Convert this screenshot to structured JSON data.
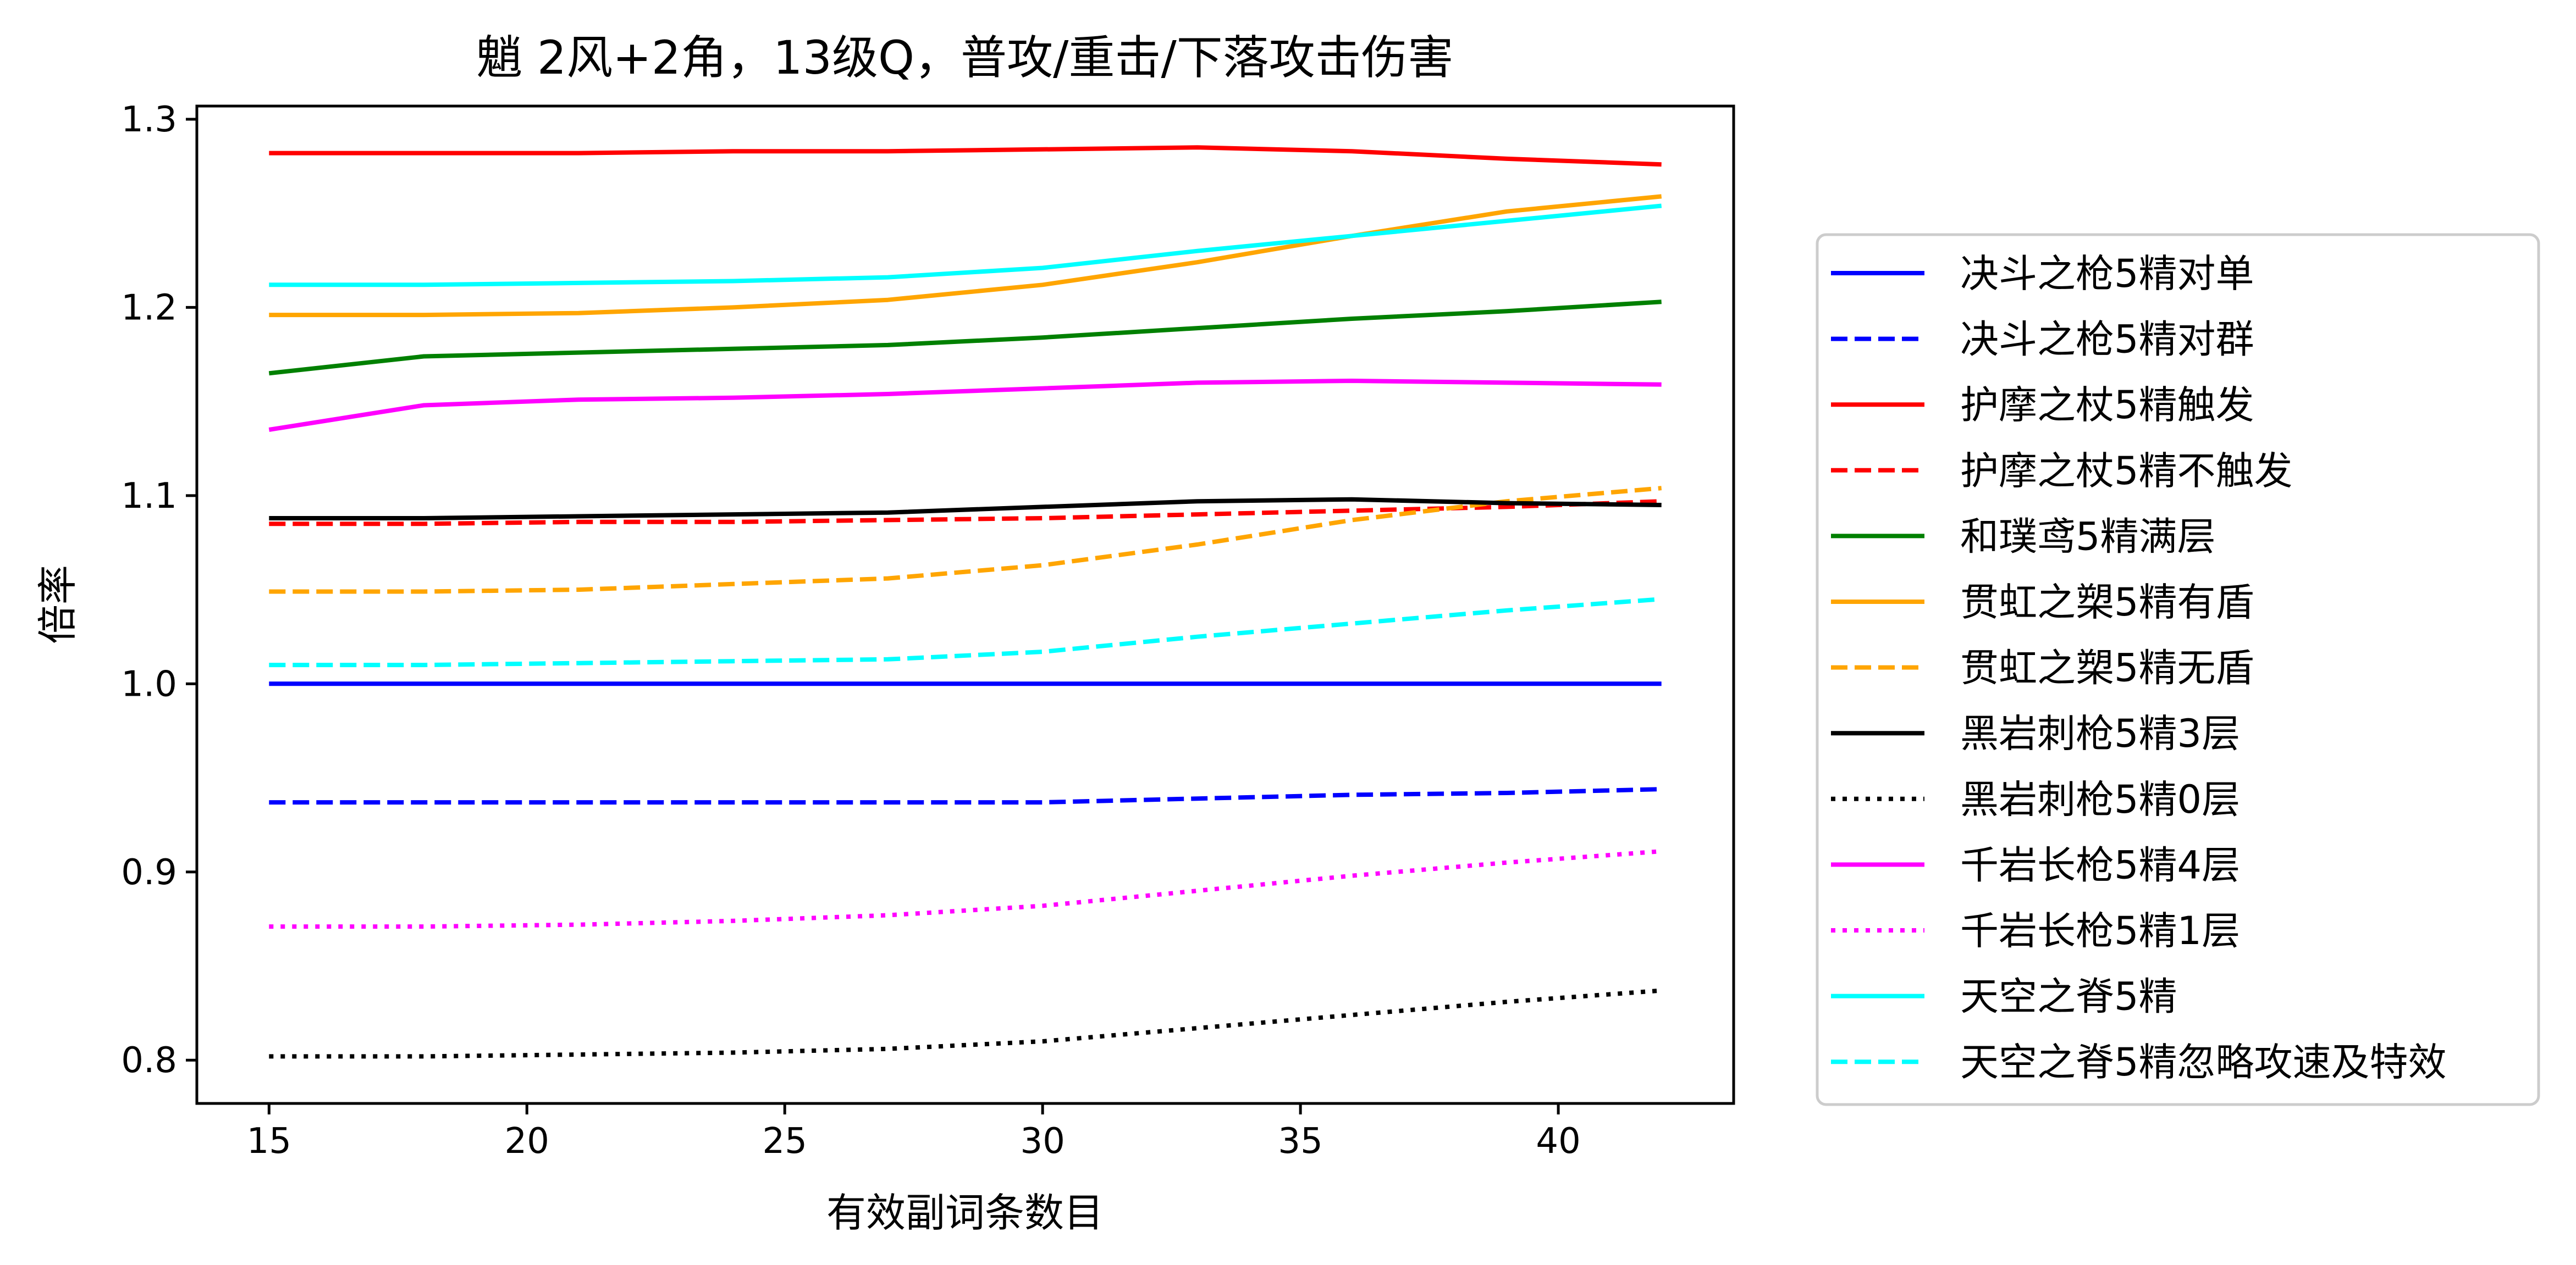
{
  "chart_data": {
    "type": "line",
    "title": "魈 2风+2角，13级Q，普攻/重击/下落攻击伤害",
    "xlabel": "有效副词条数目",
    "ylabel": "倍率",
    "xlim": [
      13.6,
      43.4
    ],
    "ylim": [
      0.777,
      1.307
    ],
    "xticks": [
      15,
      20,
      25,
      30,
      35,
      40
    ],
    "yticks": [
      0.8,
      0.9,
      1.0,
      1.1,
      1.2,
      1.3
    ],
    "xtick_labels": [
      "15",
      "20",
      "25",
      "30",
      "35",
      "40"
    ],
    "ytick_labels": [
      "0.8",
      "0.9",
      "1.0",
      "1.1",
      "1.2",
      "1.3"
    ],
    "grid": false,
    "legend_position": "outside-right",
    "x": [
      15,
      18,
      21,
      24,
      27,
      30,
      33,
      36,
      39,
      42
    ],
    "series": [
      {
        "name": "决斗之枪5精对单",
        "color": "#0000ff",
        "style": "solid",
        "values": [
          1.0,
          1.0,
          1.0,
          1.0,
          1.0,
          1.0,
          1.0,
          1.0,
          1.0,
          1.0
        ]
      },
      {
        "name": "决斗之枪5精对群",
        "color": "#0000ff",
        "style": "dashed",
        "values": [
          0.937,
          0.937,
          0.937,
          0.937,
          0.937,
          0.937,
          0.939,
          0.941,
          0.942,
          0.944
        ]
      },
      {
        "name": "护摩之杖5精触发",
        "color": "#ff0000",
        "style": "solid",
        "values": [
          1.282,
          1.282,
          1.282,
          1.283,
          1.283,
          1.284,
          1.285,
          1.283,
          1.279,
          1.276
        ]
      },
      {
        "name": "护摩之杖5精不触发",
        "color": "#ff0000",
        "style": "dashed",
        "values": [
          1.085,
          1.085,
          1.086,
          1.086,
          1.087,
          1.088,
          1.09,
          1.092,
          1.094,
          1.097
        ]
      },
      {
        "name": "和璞鸢5精满层",
        "color": "#008000",
        "style": "solid",
        "values": [
          1.165,
          1.174,
          1.176,
          1.178,
          1.18,
          1.184,
          1.189,
          1.194,
          1.198,
          1.203
        ]
      },
      {
        "name": "贯虹之槊5精有盾",
        "color": "#ffa500",
        "style": "solid",
        "values": [
          1.196,
          1.196,
          1.197,
          1.2,
          1.204,
          1.212,
          1.224,
          1.238,
          1.251,
          1.259
        ]
      },
      {
        "name": "贯虹之槊5精无盾",
        "color": "#ffa500",
        "style": "dashed",
        "values": [
          1.049,
          1.049,
          1.05,
          1.053,
          1.056,
          1.063,
          1.074,
          1.087,
          1.097,
          1.104
        ]
      },
      {
        "name": "黑岩刺枪5精3层",
        "color": "#000000",
        "style": "solid",
        "values": [
          1.088,
          1.088,
          1.089,
          1.09,
          1.091,
          1.094,
          1.097,
          1.098,
          1.096,
          1.095
        ]
      },
      {
        "name": "黑岩刺枪5精0层",
        "color": "#000000",
        "style": "dotted",
        "values": [
          0.802,
          0.802,
          0.803,
          0.804,
          0.806,
          0.81,
          0.817,
          0.824,
          0.831,
          0.837
        ]
      },
      {
        "name": "千岩长枪5精4层",
        "color": "#ff00ff",
        "style": "solid",
        "values": [
          1.135,
          1.148,
          1.151,
          1.152,
          1.154,
          1.157,
          1.16,
          1.161,
          1.16,
          1.159
        ]
      },
      {
        "name": "千岩长枪5精1层",
        "color": "#ff00ff",
        "style": "dotted",
        "values": [
          0.871,
          0.871,
          0.872,
          0.874,
          0.877,
          0.882,
          0.89,
          0.898,
          0.905,
          0.911
        ]
      },
      {
        "name": "天空之脊5精",
        "color": "#00ffff",
        "style": "solid",
        "values": [
          1.212,
          1.212,
          1.213,
          1.214,
          1.216,
          1.221,
          1.23,
          1.238,
          1.246,
          1.254
        ]
      },
      {
        "name": "天空之脊5精忽略攻速及特效",
        "color": "#00ffff",
        "style": "dashed",
        "values": [
          1.01,
          1.01,
          1.011,
          1.012,
          1.013,
          1.017,
          1.025,
          1.032,
          1.039,
          1.045
        ]
      }
    ]
  }
}
